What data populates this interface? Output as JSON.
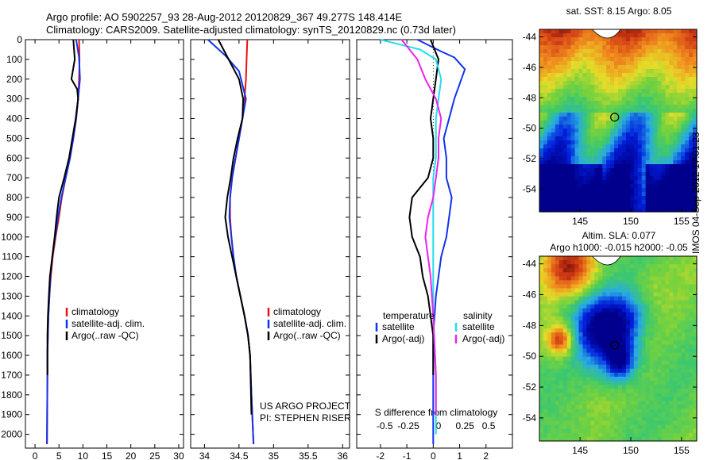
{
  "header": {
    "line1": "Argo profile: AO 5902257_93 28-Aug-2012 20120829_367 49.277S 148.414E",
    "line2": "Climatology: CARS2009. Satellite-adjusted climatology: synTS_20120829.nc (0.73d later)"
  },
  "watermark": "IMOS 04-Sep-2012 17:01:23",
  "colors": {
    "climatology": "#ee1111",
    "satellite": "#1133ee",
    "argo": "#000000",
    "sat_salinity": "#22ddee",
    "argo_salinity_adj": "#ee22ee"
  },
  "chart_data": [
    {
      "type": "line",
      "id": "temperature",
      "xlabel": "temperature (deg C)",
      "xlim": [
        -2,
        31
      ],
      "xticks": [
        0,
        5,
        10,
        15,
        20,
        25,
        30
      ],
      "ylim": [
        2070,
        0
      ],
      "yticks": [
        0,
        100,
        200,
        300,
        400,
        500,
        600,
        700,
        800,
        900,
        1000,
        1100,
        1200,
        1300,
        1400,
        1500,
        1600,
        1700,
        1800,
        1900,
        2000
      ],
      "legend": [
        {
          "label": "climatology",
          "color": "#ee1111"
        },
        {
          "label": "satellite-adj. clim.",
          "color": "#1133ee"
        },
        {
          "label": "Argo(..raw -QC)",
          "color": "#000000"
        }
      ],
      "series": [
        {
          "color": "#ee1111",
          "x": [
            9.2,
            9.3,
            9.2,
            9.0,
            8.6,
            8.0,
            7.3,
            6.4,
            5.6,
            5.0,
            4.3,
            3.7,
            3.3,
            3.0,
            2.8,
            2.7,
            2.6,
            2.6,
            2.5
          ],
          "y": [
            0,
            100,
            200,
            300,
            400,
            500,
            600,
            700,
            800,
            900,
            1000,
            1100,
            1200,
            1300,
            1400,
            1500,
            1600,
            1700,
            2050
          ]
        },
        {
          "color": "#1133ee",
          "x": [
            8.6,
            9.2,
            9.4,
            9.0,
            8.6,
            8.0,
            7.3,
            6.4,
            5.5,
            4.8,
            4.2,
            3.6,
            3.2,
            3.0,
            2.8,
            2.7,
            2.6,
            2.6,
            2.5
          ],
          "y": [
            0,
            90,
            200,
            300,
            400,
            500,
            600,
            700,
            800,
            900,
            1000,
            1100,
            1200,
            1300,
            1400,
            1500,
            1600,
            1700,
            2050
          ]
        },
        {
          "color": "#000000",
          "x": [
            8.0,
            8.3,
            7.6,
            8.8,
            9.0,
            8.5,
            7.8,
            7.1,
            6.1,
            5.0,
            4.5,
            4.1,
            3.6,
            3.1,
            2.9,
            2.7,
            2.6,
            2.6
          ],
          "y": [
            0,
            100,
            200,
            250,
            300,
            400,
            500,
            600,
            700,
            800,
            900,
            1000,
            1100,
            1200,
            1300,
            1400,
            1500,
            1700
          ]
        }
      ]
    },
    {
      "type": "line",
      "id": "salinity",
      "xlabel": "salinity",
      "xlim": [
        33.8,
        36.1
      ],
      "xticks": [
        34,
        34.5,
        35,
        35.5,
        36
      ],
      "ylim": [
        2070,
        0
      ],
      "legend": [
        {
          "label": "climatology",
          "color": "#ee1111"
        },
        {
          "label": "satellite-adj. clim.",
          "color": "#1133ee"
        },
        {
          "label": "Argo(..raw -QC)",
          "color": "#000000"
        }
      ],
      "annotation": [
        "US ARGO PROJECT",
        "PI: STEPHEN RISER"
      ],
      "series": [
        {
          "color": "#ee1111",
          "x": [
            34.62,
            34.61,
            34.6,
            34.58,
            34.55,
            34.5,
            34.45,
            34.4,
            34.37,
            34.37,
            34.39,
            34.42,
            34.46,
            34.52,
            34.58,
            34.63,
            34.66,
            34.68,
            34.71
          ],
          "y": [
            0,
            100,
            200,
            300,
            400,
            500,
            600,
            700,
            800,
            900,
            1000,
            1100,
            1200,
            1300,
            1400,
            1500,
            1600,
            1800,
            2050
          ]
        },
        {
          "color": "#1133ee",
          "x": [
            34.05,
            34.3,
            34.5,
            34.6,
            34.55,
            34.5,
            34.45,
            34.4,
            34.37,
            34.36,
            34.39,
            34.42,
            34.46,
            34.52,
            34.58,
            34.63,
            34.66,
            34.68,
            34.71
          ],
          "y": [
            0,
            80,
            160,
            300,
            400,
            500,
            600,
            700,
            800,
            900,
            1000,
            1100,
            1200,
            1300,
            1400,
            1500,
            1600,
            1800,
            2050
          ]
        },
        {
          "color": "#000000",
          "x": [
            34.2,
            34.35,
            34.5,
            34.56,
            34.55,
            34.48,
            34.42,
            34.38,
            34.33,
            34.3,
            34.34,
            34.4,
            34.46,
            34.52,
            34.58,
            34.63,
            34.66,
            34.68
          ],
          "y": [
            0,
            100,
            200,
            300,
            400,
            500,
            600,
            700,
            800,
            900,
            1000,
            1100,
            1200,
            1300,
            1400,
            1500,
            1600,
            1900
          ]
        }
      ]
    },
    {
      "type": "line",
      "id": "differences",
      "xlabel": "T difference from climatology",
      "xlim": [
        -2.9,
        3.0
      ],
      "xticks": [
        -2,
        -1,
        0,
        1,
        2
      ],
      "top_axis_label": "S difference from climatology",
      "top_ticks": [
        "-0.5",
        "-0.25",
        "0",
        "0.25",
        "0.5"
      ],
      "ylim": [
        2070,
        0
      ],
      "legend_left": {
        "title": "temperature",
        "items": [
          {
            "label": "satellite",
            "color": "#1133ee"
          },
          {
            "label": "Argo(-adj)",
            "color": "#000000"
          }
        ]
      },
      "legend_right": {
        "title": "salinity",
        "items": [
          {
            "label": "satellite",
            "color": "#22ddee"
          },
          {
            "label": "Argo(-adj)",
            "color": "#ee22ee"
          }
        ]
      },
      "series": [
        {
          "color": "#1133ee",
          "x": [
            -0.6,
            0.3,
            0.8,
            1.2,
            0.8,
            0.6,
            0.4,
            0.5,
            0.5,
            0.7,
            0.6,
            0.5,
            0.3,
            0.2,
            0.1,
            0.0,
            0.0,
            0.0
          ],
          "y": [
            0,
            60,
            90,
            150,
            300,
            400,
            500,
            600,
            700,
            800,
            900,
            1000,
            1100,
            1200,
            1300,
            1500,
            1800,
            2050
          ]
        },
        {
          "color": "#000000",
          "x": [
            -0.1,
            0.2,
            0.1,
            0.0,
            -0.1,
            0.0,
            0.0,
            -0.2,
            -0.8,
            -0.9,
            -0.8,
            -0.5,
            -0.4,
            -0.2,
            0.0,
            0.0
          ],
          "y": [
            0,
            100,
            200,
            300,
            400,
            500,
            600,
            700,
            800,
            900,
            1000,
            1100,
            1200,
            1300,
            1500,
            1700
          ]
        },
        {
          "color": "#22ddee",
          "x": [
            -2.0,
            -0.5,
            0.1,
            0.3,
            0.2,
            0.1,
            0.1,
            0.1,
            0.0,
            0.0,
            0.0,
            0.0,
            0.1,
            0.1
          ],
          "y": [
            0,
            50,
            100,
            200,
            300,
            400,
            500,
            600,
            700,
            900,
            1100,
            1400,
            1700,
            2000
          ]
        },
        {
          "color": "#ee22ee",
          "x": [
            -1.2,
            -0.6,
            -0.3,
            0.1,
            0.3,
            0.2,
            0.2,
            0.1,
            0.0,
            -0.2,
            -0.3,
            -0.2,
            -0.1,
            0.0,
            0.1,
            0.1
          ],
          "y": [
            0,
            100,
            200,
            300,
            400,
            500,
            600,
            700,
            800,
            900,
            1000,
            1100,
            1200,
            1400,
            1700,
            1900
          ]
        }
      ]
    },
    {
      "type": "heatmap",
      "id": "sst_map",
      "title": "sat. SST: 8.15 Argo: 8.05",
      "xticks": [
        145,
        150,
        155
      ],
      "yticks": [
        -44,
        -46,
        -48,
        -50,
        -52,
        -54
      ],
      "xlim": [
        141,
        156.5
      ],
      "ylim": [
        -55.5,
        -43.5
      ],
      "argo_position": {
        "lon": 148.414,
        "lat": -49.277
      }
    },
    {
      "type": "heatmap",
      "id": "sla_map",
      "title": "Altim. SLA: 0.077",
      "subtitle": "Argo h1000: -0.015 h2000: -0.05",
      "xticks": [
        145,
        150,
        155
      ],
      "yticks": [
        -44,
        -46,
        -48,
        -50,
        -52,
        -54
      ],
      "xlim": [
        141,
        156.5
      ],
      "ylim": [
        -55.5,
        -43.5
      ],
      "argo_position": {
        "lon": 148.414,
        "lat": -49.277
      }
    }
  ]
}
